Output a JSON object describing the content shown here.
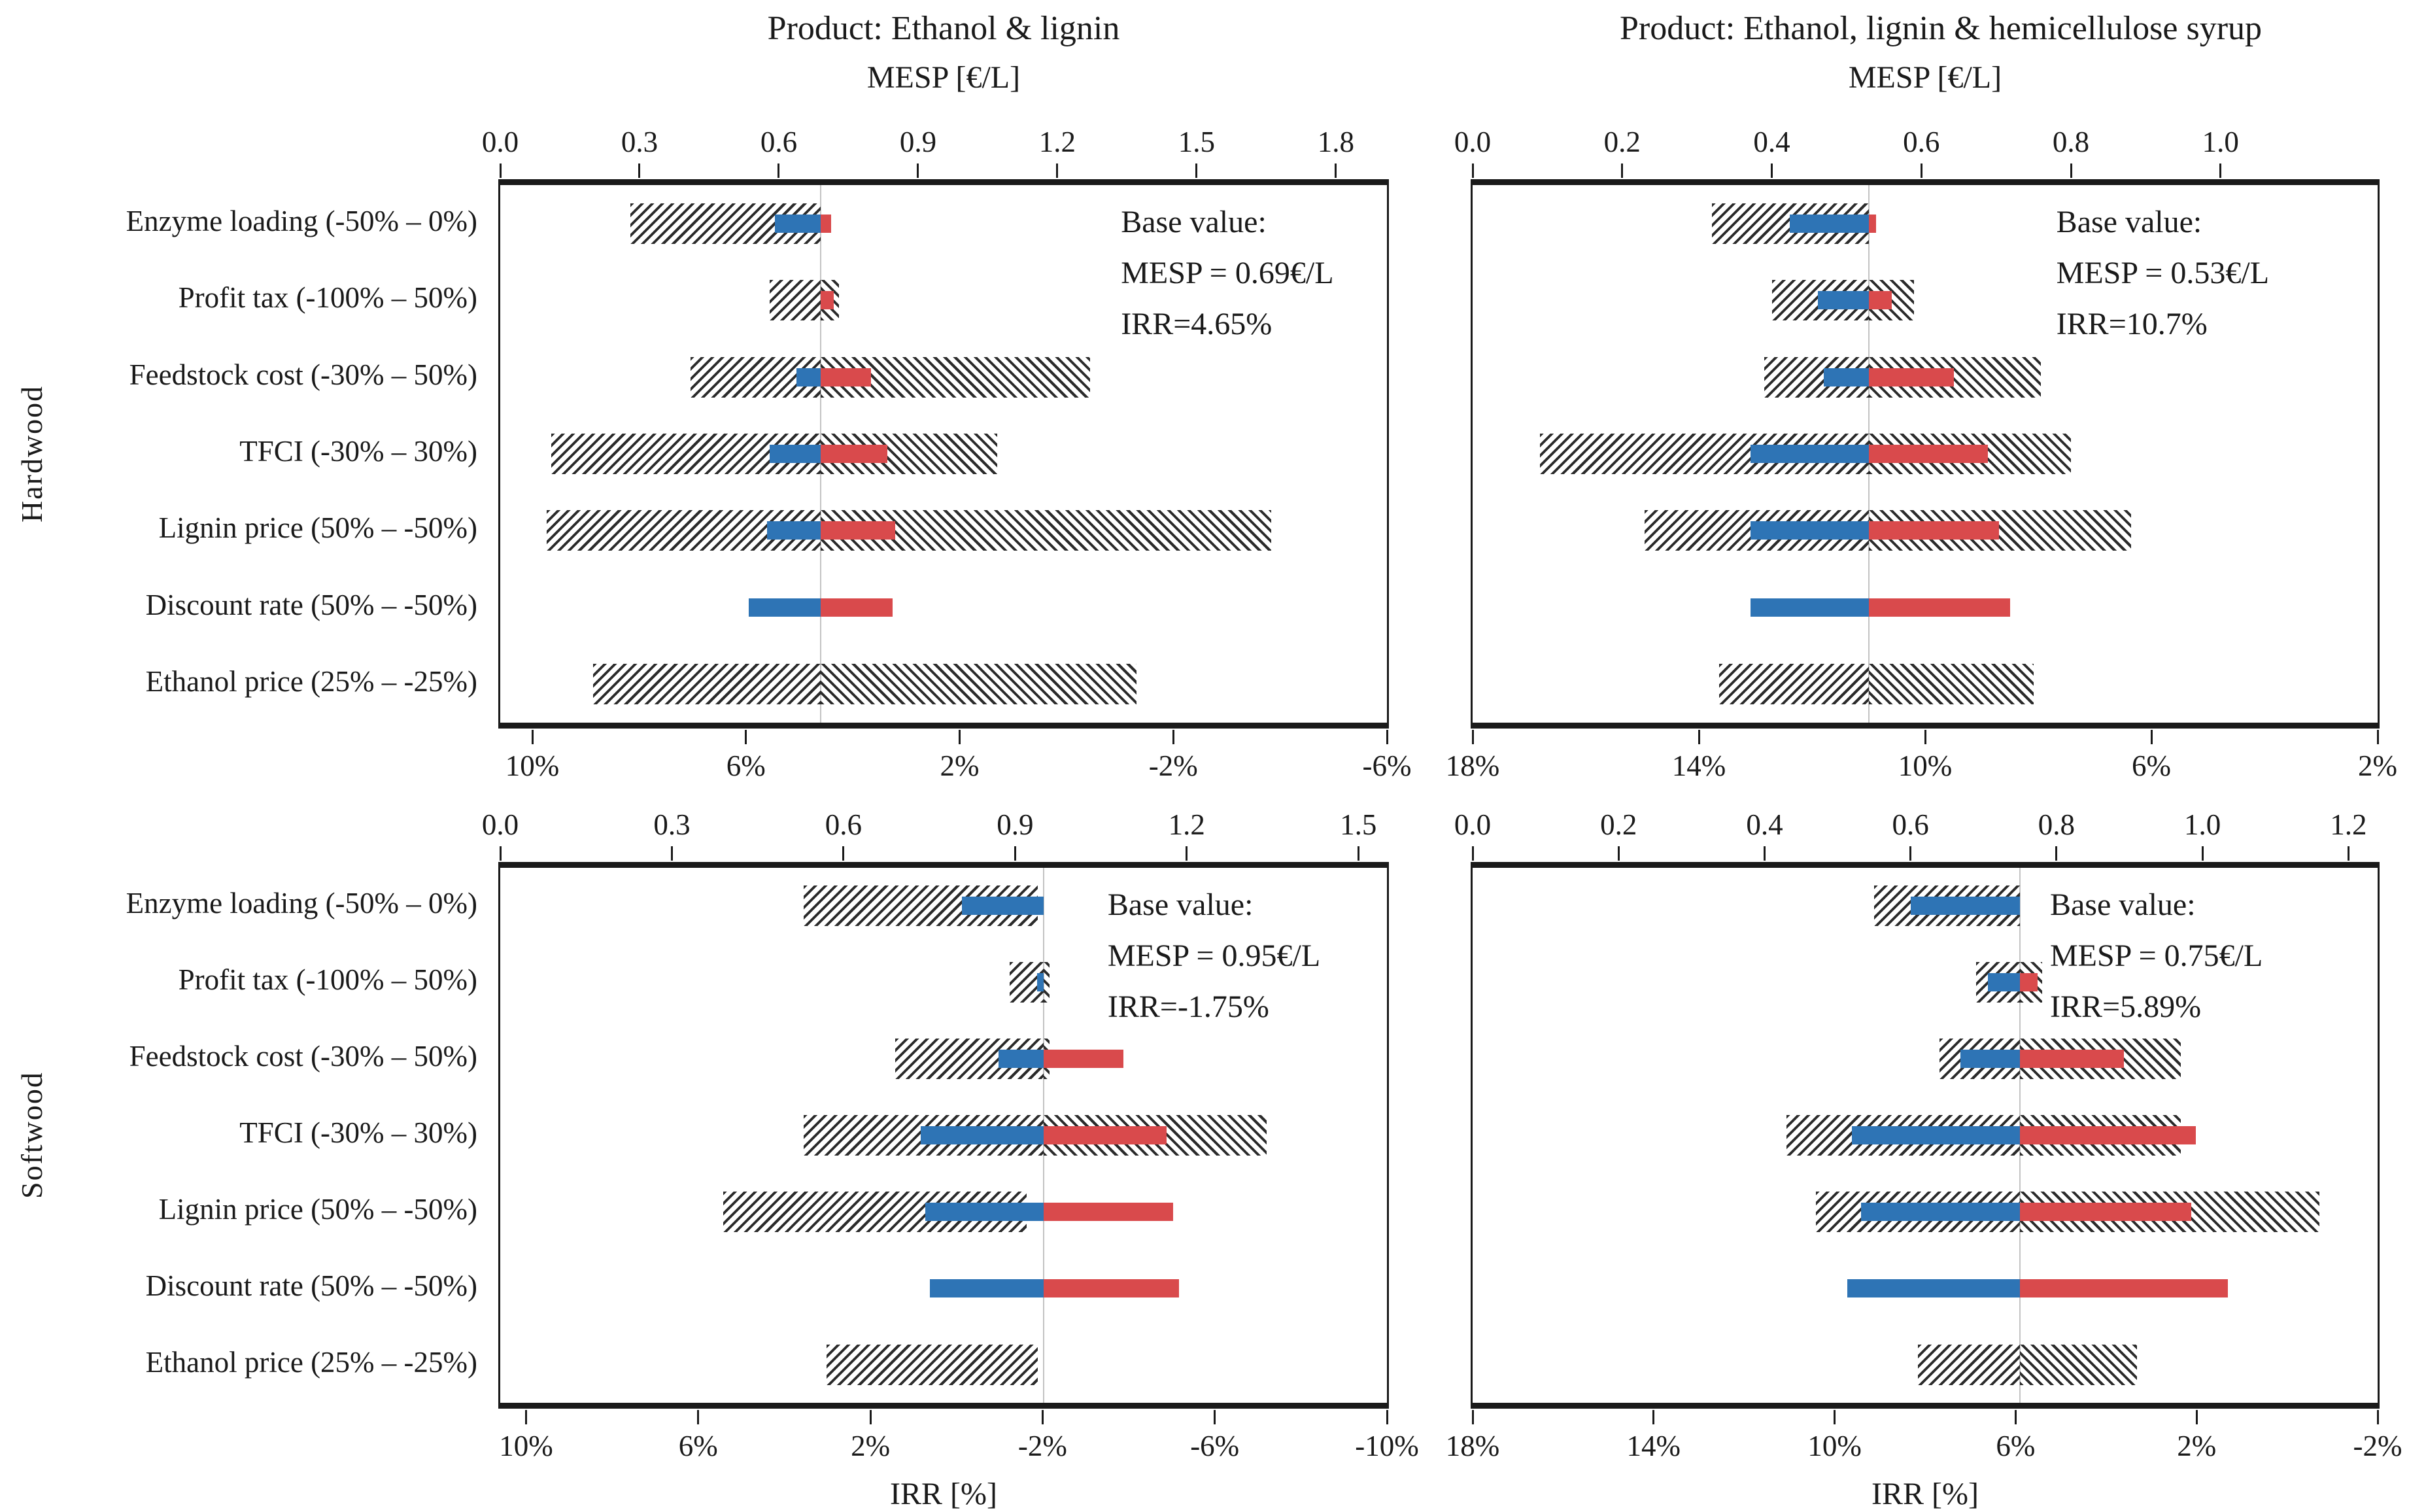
{
  "figure": {
    "description_labels": {
      "base_value_prefix": "Base value:",
      "mesp_axis_label": "MESP [€/L]",
      "irr_axis_label": "IRR [%]"
    }
  },
  "colors": {
    "irr_increase_blue": "#2E74B5",
    "irr_decrease_red": "#D94A4C",
    "hatch_black": "#2b2b2b",
    "baseline_gray": "#c3c3c3",
    "axis_black": "#1a1a1a"
  },
  "categories": [
    "Enzyme loading (-50% – 0%)",
    "Profit tax (-100% – 50%)",
    "Feedstock cost (-30% – 50%)",
    "TFCI (-30% – 30%)",
    "Lignin price (50% – -50%)",
    "Discount rate (50% – -50%)",
    "Ethanol price (25% – -25%)"
  ],
  "chart_data": [
    {
      "type": "tornado-bar",
      "id": "hardwood-ethanol-lignin",
      "title": "Product: Ethanol & lignin",
      "wood": "Hardwood",
      "mesp_axis": {
        "label": "MESP [€/L]",
        "min": 0,
        "max": 1.91,
        "ticks": [
          0.0,
          0.3,
          0.6,
          0.9,
          1.2,
          1.5,
          1.8
        ],
        "tick_labels": [
          "0.0",
          "0.3",
          "0.6",
          "0.9",
          "1.2",
          "1.5",
          "1.8"
        ]
      },
      "irr_axis": {
        "label": "IRR [%]",
        "left": 10.6,
        "right": -6.0,
        "ticks": [
          10,
          6,
          2,
          -2,
          -6
        ],
        "tick_labels": [
          "10%",
          "6%",
          "2%",
          "-2%",
          "-6%"
        ]
      },
      "base": {
        "mesp": 0.69,
        "irr": 4.65
      },
      "annotation": [
        "Base value:",
        "MESP = 0.69€/L",
        "IRR=4.65%"
      ],
      "rows": [
        {
          "mesp_range": [
            0.28,
            0.69
          ],
          "irr_high": 5.5,
          "irr_low": 4.45
        },
        {
          "mesp_range": [
            0.58,
            0.73
          ],
          "irr_high": null,
          "irr_low": 4.4
        },
        {
          "mesp_range": [
            0.41,
            1.27
          ],
          "irr_high": 5.1,
          "irr_low": 3.7
        },
        {
          "mesp_range": [
            0.11,
            1.07
          ],
          "irr_high": 5.6,
          "irr_low": 3.4
        },
        {
          "mesp_range": [
            0.1,
            1.66
          ],
          "irr_high": 5.65,
          "irr_low": 3.25
        },
        {
          "mesp_range": null,
          "irr_high": 6.0,
          "irr_low": 3.3
        },
        {
          "mesp_range": [
            0.2,
            1.37
          ],
          "irr_high": null,
          "irr_low": null
        }
      ]
    },
    {
      "type": "tornado-bar",
      "id": "hardwood-ethanol-lignin-hemicellulose-syrup",
      "title": "Product: Ethanol, lignin & hemicellulose syrup",
      "wood": "Hardwood",
      "mesp_axis": {
        "label": "MESP [€/L]",
        "min": 0,
        "max": 1.21,
        "ticks": [
          0.0,
          0.2,
          0.4,
          0.6,
          0.8,
          1.0
        ],
        "tick_labels": [
          "0.0",
          "0.2",
          "0.4",
          "0.6",
          "0.8",
          "1.0"
        ]
      },
      "irr_axis": {
        "label": "IRR [%]",
        "left": 18.0,
        "right": 2.0,
        "ticks": [
          18,
          14,
          10,
          6,
          2
        ],
        "tick_labels": [
          "18%",
          "14%",
          "10%",
          "6%",
          "2%"
        ]
      },
      "base": {
        "mesp": 0.53,
        "irr": 10.7
      },
      "annotation": [
        "Base value:",
        "MESP = 0.53€/L",
        "IRR=10.7%"
      ],
      "rows": [
        {
          "mesp_range": [
            0.32,
            0.53
          ],
          "irr_high": 12.1,
          "irr_low": 10.58
        },
        {
          "mesp_range": [
            0.4,
            0.59
          ],
          "irr_high": 11.6,
          "irr_low": 10.3
        },
        {
          "mesp_range": [
            0.39,
            0.76
          ],
          "irr_high": 11.5,
          "irr_low": 9.2
        },
        {
          "mesp_range": [
            0.09,
            0.8
          ],
          "irr_high": 12.8,
          "irr_low": 8.6
        },
        {
          "mesp_range": [
            0.23,
            0.88
          ],
          "irr_high": 12.8,
          "irr_low": 8.4
        },
        {
          "mesp_range": null,
          "irr_high": 12.8,
          "irr_low": 8.2
        },
        {
          "mesp_range": [
            0.33,
            0.75
          ],
          "irr_high": null,
          "irr_low": null
        }
      ]
    },
    {
      "type": "tornado-bar",
      "id": "softwood-ethanol-lignin",
      "title": "",
      "wood": "Softwood",
      "mesp_axis": {
        "label": "MESP [€/L]",
        "min": 0,
        "max": 1.55,
        "ticks": [
          0.0,
          0.3,
          0.6,
          0.9,
          1.2,
          1.5
        ],
        "tick_labels": [
          "0.0",
          "0.3",
          "0.6",
          "0.9",
          "1.2",
          "1.5"
        ]
      },
      "irr_axis": {
        "label": "IRR [%]",
        "left": 10.6,
        "right": -10.0,
        "ticks": [
          10,
          6,
          2,
          -2,
          -6,
          -10
        ],
        "tick_labels": [
          "10%",
          "6%",
          "2%",
          "-2%",
          "-6%",
          "-10%"
        ]
      },
      "base": {
        "mesp": 0.95,
        "irr": -1.75
      },
      "annotation": [
        "Base value:",
        "MESP = 0.95€/L",
        "IRR=-1.75%"
      ],
      "rows": [
        {
          "mesp_range": [
            0.53,
            0.94
          ],
          "irr_high": 0.15,
          "irr_low": null
        },
        {
          "mesp_range": [
            0.89,
            0.96
          ],
          "irr_high": -1.6,
          "irr_low": null
        },
        {
          "mesp_range": [
            0.69,
            0.96
          ],
          "irr_high": -0.7,
          "irr_low": -3.6
        },
        {
          "mesp_range": [
            0.53,
            1.34
          ],
          "irr_high": 1.1,
          "irr_low": -4.6
        },
        {
          "mesp_range": [
            0.39,
            0.92
          ],
          "irr_high": 1.0,
          "irr_low": -4.75
        },
        {
          "mesp_range": null,
          "irr_high": 0.9,
          "irr_low": -4.9
        },
        {
          "mesp_range": [
            0.57,
            0.94
          ],
          "irr_high": null,
          "irr_low": null
        }
      ]
    },
    {
      "type": "tornado-bar",
      "id": "softwood-ethanol-lignin-hemicellulose-syrup",
      "title": "",
      "wood": "Softwood",
      "mesp_axis": {
        "label": "MESP [€/L]",
        "min": 0,
        "max": 1.24,
        "ticks": [
          0.0,
          0.2,
          0.4,
          0.6,
          0.8,
          1.0,
          1.2
        ],
        "tick_labels": [
          "0.0",
          "0.2",
          "0.4",
          "0.6",
          "0.8",
          "1.0",
          "1.2"
        ]
      },
      "irr_axis": {
        "label": "IRR [%]",
        "left": 18.0,
        "right": -2.0,
        "ticks": [
          18,
          14,
          10,
          6,
          2,
          -2
        ],
        "tick_labels": [
          "18%",
          "14%",
          "10%",
          "6%",
          "2%",
          "-2%"
        ]
      },
      "base": {
        "mesp": 0.75,
        "irr": 5.89
      },
      "annotation": [
        "Base value:",
        "MESP = 0.75€/L",
        "IRR=5.89%"
      ],
      "rows": [
        {
          "mesp_range": [
            0.55,
            0.75
          ],
          "irr_high": 8.3,
          "irr_low": null
        },
        {
          "mesp_range": [
            0.69,
            0.78
          ],
          "irr_high": 6.6,
          "irr_low": 5.5
        },
        {
          "mesp_range": [
            0.64,
            0.97
          ],
          "irr_high": 7.2,
          "irr_low": 3.6
        },
        {
          "mesp_range": [
            0.43,
            0.97
          ],
          "irr_high": 9.6,
          "irr_low": 2.0
        },
        {
          "mesp_range": [
            0.47,
            1.16
          ],
          "irr_high": 9.4,
          "irr_low": 2.1
        },
        {
          "mesp_range": null,
          "irr_high": 9.7,
          "irr_low": 1.3
        },
        {
          "mesp_range": [
            0.61,
            0.91
          ],
          "irr_high": null,
          "irr_low": null
        }
      ]
    }
  ]
}
